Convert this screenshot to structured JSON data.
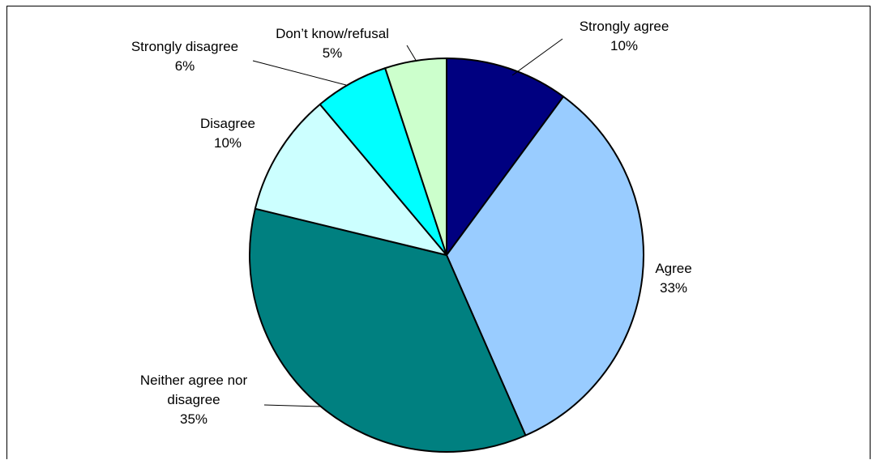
{
  "chart_data": {
    "type": "pie",
    "title": "",
    "slices": [
      {
        "label": "Strongly agree",
        "value": 10,
        "value_label": "10%",
        "color": "#000080"
      },
      {
        "label": "Agree",
        "value": 33,
        "value_label": "33%",
        "color": "#99CCFF"
      },
      {
        "label": "Neither agree nor disagree",
        "label_lines": [
          "Neither agree nor",
          "disagree"
        ],
        "value": 35,
        "value_label": "35%",
        "color": "#008080"
      },
      {
        "label": "Disagree",
        "value": 10,
        "value_label": "10%",
        "color": "#CCFFFF"
      },
      {
        "label": "Strongly disagree",
        "value": 6,
        "value_label": "6%",
        "color": "#00FFFF"
      },
      {
        "label": "Don’t know/refusal",
        "value": 5,
        "value_label": "5%",
        "color": "#CCFFCC"
      }
    ],
    "start": "12 o'clock",
    "direction": "clockwise",
    "legend": "none",
    "labels": "outside with leader lines"
  }
}
